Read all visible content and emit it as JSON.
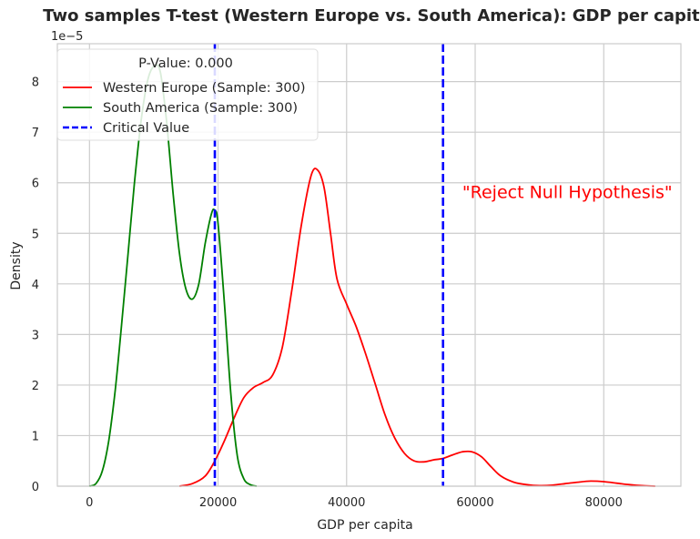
{
  "chart_data": {
    "type": "line",
    "title": "Two samples T-test (Western Europe vs. South America): GDP per capita",
    "xlabel": "GDP per capita",
    "ylabel": "Density",
    "y_offset_label": "1e−5",
    "xlim": [
      -5000,
      92000
    ],
    "ylim": [
      0,
      8.75
    ],
    "x_ticks": [
      0,
      20000,
      40000,
      60000,
      80000
    ],
    "x_tick_labels": [
      "0",
      "20000",
      "40000",
      "60000",
      "80000"
    ],
    "y_ticks": [
      0,
      1,
      2,
      3,
      4,
      5,
      6,
      7,
      8
    ],
    "y_tick_labels": [
      "0",
      "1",
      "2",
      "3",
      "4",
      "5",
      "6",
      "7",
      "8"
    ],
    "grid": true,
    "legend": {
      "placement": "top-left",
      "title": "P-Value: 0.000",
      "entries": [
        {
          "label": "Western Europe (Sample: 300)",
          "color": "#ff0000",
          "style": "solid"
        },
        {
          "label": "South America (Sample: 300)",
          "color": "#008000",
          "style": "solid"
        },
        {
          "label": "Critical Value",
          "color": "#0000ff",
          "style": "dashed"
        }
      ]
    },
    "series": [
      {
        "name": "Western Europe (Sample: 300)",
        "color": "#ff0000",
        "x": [
          14000,
          16000,
          18000,
          19500,
          21000,
          22500,
          24000,
          25500,
          27000,
          28500,
          30000,
          31500,
          33000,
          34500,
          35500,
          36500,
          37500,
          38500,
          40000,
          41500,
          43000,
          44500,
          46000,
          47500,
          49000,
          50500,
          52000,
          53500,
          55000,
          56500,
          58000,
          59500,
          61000,
          62500,
          64000,
          66000,
          68000,
          70000,
          72000,
          74000,
          76000,
          78000,
          80000,
          82000,
          84000,
          86000,
          88000
        ],
        "y": [
          0.0,
          0.05,
          0.2,
          0.5,
          0.9,
          1.35,
          1.75,
          1.95,
          2.05,
          2.2,
          2.75,
          3.9,
          5.2,
          6.15,
          6.25,
          5.9,
          5.0,
          4.1,
          3.6,
          3.15,
          2.6,
          2.0,
          1.4,
          0.95,
          0.65,
          0.5,
          0.48,
          0.52,
          0.55,
          0.62,
          0.68,
          0.68,
          0.58,
          0.38,
          0.2,
          0.08,
          0.03,
          0.01,
          0.02,
          0.05,
          0.08,
          0.1,
          0.09,
          0.06,
          0.03,
          0.01,
          0.0
        ]
      },
      {
        "name": "South America (Sample: 300)",
        "color": "#008000",
        "x": [
          0,
          1000,
          2000,
          3000,
          4000,
          5000,
          6000,
          7000,
          8000,
          9000,
          10000,
          11000,
          12000,
          13000,
          14000,
          15000,
          16000,
          17000,
          18000,
          19000,
          19500,
          20000,
          21000,
          22000,
          23000,
          24000,
          25000,
          26000
        ],
        "y": [
          0.0,
          0.05,
          0.3,
          0.9,
          1.9,
          3.2,
          4.6,
          6.0,
          7.2,
          8.0,
          8.3,
          8.2,
          7.2,
          5.8,
          4.6,
          3.9,
          3.7,
          4.0,
          4.8,
          5.4,
          5.45,
          5.2,
          3.6,
          1.8,
          0.6,
          0.15,
          0.03,
          0.0
        ]
      }
    ],
    "critical_values": [
      19500,
      55000
    ],
    "annotation": {
      "text": "\"Reject Null Hypothesis\"",
      "x": 58000,
      "y": 5.7,
      "color": "#ff0000"
    }
  }
}
